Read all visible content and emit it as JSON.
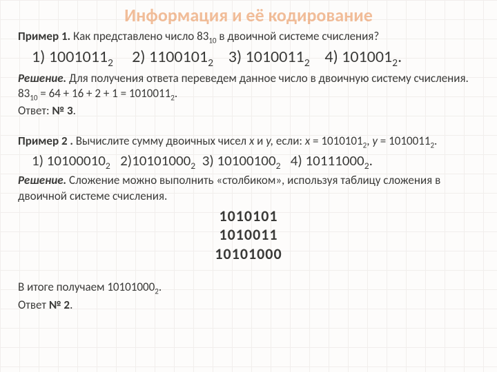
{
  "title": "Информация и её кодирование",
  "ex1": {
    "label": "Пример 1.",
    "question_before": " Как представлено число 83",
    "question_sub": "10",
    "question_after": " в двоичной системе счисления?",
    "options": {
      "o1": "1) 1001011",
      "o1s": "2",
      "o2": "2) 1100101",
      "o2s": "2",
      "o3": "3) 1010011",
      "o3s": "2",
      "o4": "4) 101001",
      "o4s": "2",
      "tail": "."
    },
    "sol_label": "Решение.",
    "sol_text1": " Для получения ответа переведем данное число в двоичную систему счисления. 83",
    "sol_sub1": "10",
    "sol_text2": " = 64 + 16 + 2 + 1 =  1010011",
    "sol_sub2": "2",
    "sol_text3": ".",
    "answer_label": "Ответ: ",
    "answer_value": "№ 3",
    "answer_tail": "."
  },
  "ex2": {
    "label": "Пример 2 .",
    "q1": " Вычислите сумму двоичных чисел ",
    "q_x": "x",
    "q_and": " и ",
    "q_y": "y,",
    "q2": " если: ",
    "q_xeq": "x",
    "q3": " = 1010101",
    "q3s": "2",
    "q4": ", ",
    "q_yeq": "y",
    "q5": " = 1010011",
    "q5s": "2",
    "q6": ".",
    "options": {
      "o1": "1) 10100010",
      "o1s": "2",
      "o2": "2)10101000",
      "o2s": "2",
      "o3": "3) 10100100",
      "o3s": "2",
      "o4": "4) 10111000",
      "o4s": "2",
      "tail": "."
    },
    "sol_label": "Решение.",
    "sol_text": " Сложение можно выполнить «столбиком», используя таблицу сложения в двоичной системе счисления.",
    "add_line1": "1010101",
    "add_line2": "1010011",
    "add_result": "10101000",
    "result_text1": "В итоге получаем 10101000",
    "result_sub": "2",
    "result_text2": ".",
    "answer_label": "Ответ ",
    "answer_value": "№ 2",
    "answer_tail": "."
  }
}
